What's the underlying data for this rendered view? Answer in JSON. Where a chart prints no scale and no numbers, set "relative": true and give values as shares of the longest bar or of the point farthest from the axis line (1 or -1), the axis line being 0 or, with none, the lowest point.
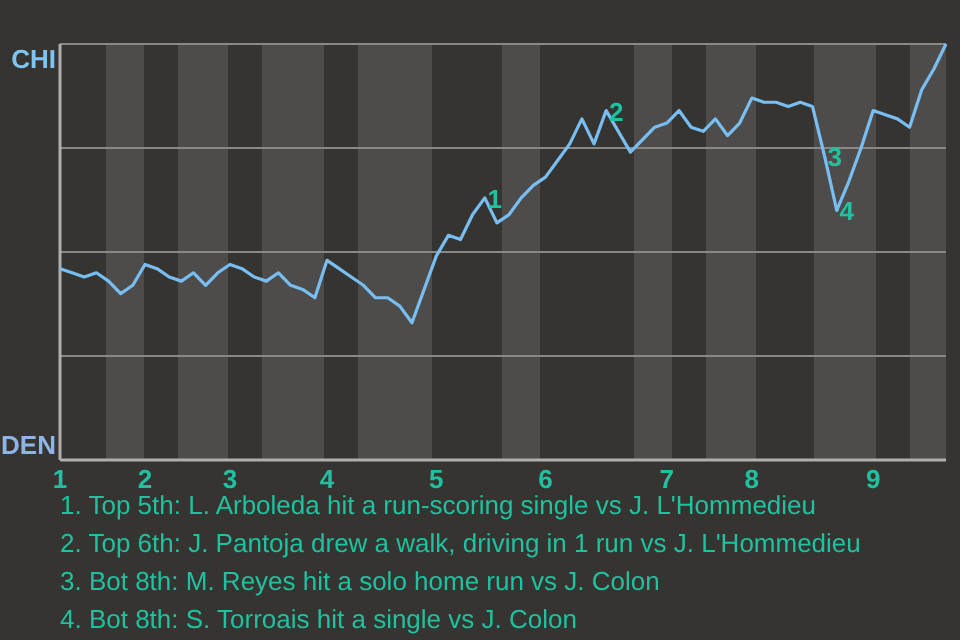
{
  "chart_data": {
    "type": "line",
    "relative": true,
    "categories": [
      "1",
      null,
      null,
      null,
      null,
      null,
      null,
      "2",
      null,
      null,
      null,
      null,
      null,
      null,
      "3",
      null,
      null,
      null,
      null,
      null,
      null,
      null,
      "4",
      null,
      null,
      null,
      null,
      null,
      null,
      null,
      null,
      "5",
      null,
      null,
      null,
      null,
      null,
      null,
      null,
      null,
      "6",
      null,
      null,
      null,
      null,
      null,
      null,
      null,
      null,
      null,
      "7",
      null,
      null,
      null,
      null,
      null,
      null,
      "8",
      null,
      null,
      null,
      null,
      null,
      null,
      null,
      null,
      null,
      "9",
      null,
      null,
      null,
      null,
      null,
      null
    ],
    "grid": "y",
    "marker": "none",
    "line_style": "solid",
    "series": [
      {
        "color": "#78bef2",
        "values": [
          0.46,
          0.45,
          0.44,
          0.45,
          0.43,
          0.4,
          0.42,
          0.47,
          0.46,
          0.44,
          0.43,
          0.45,
          0.42,
          0.45,
          0.47,
          0.46,
          0.44,
          0.43,
          0.45,
          0.42,
          0.41,
          0.39,
          0.48,
          0.46,
          0.44,
          0.42,
          0.39,
          0.39,
          0.37,
          0.33,
          0.41,
          0.49,
          0.54,
          0.53,
          0.59,
          0.63,
          0.57,
          0.59,
          0.63,
          0.66,
          0.68,
          0.72,
          0.76,
          0.82,
          0.76,
          0.84,
          0.79,
          0.74,
          0.77,
          0.8,
          0.81,
          0.84,
          0.8,
          0.79,
          0.82,
          0.78,
          0.81,
          0.87,
          0.86,
          0.86,
          0.85,
          0.86,
          0.85,
          0.73,
          0.6,
          0.67,
          0.75,
          0.84,
          0.83,
          0.82,
          0.8,
          0.89,
          0.94,
          1.0
        ]
      }
    ],
    "annotations": [
      "CHI",
      "DEN",
      {
        "text": "1",
        "y": 0.63
      },
      {
        "text": "2",
        "y": 0.84
      },
      {
        "text": "3",
        "y": 0.73
      },
      {
        "text": "4",
        "y": 0.6
      },
      "1. Top 5th: L. Arboleda hit a run-scoring single vs J. L'Hommedieu",
      "2. Top 6th: J. Pantoja drew a walk, driving in 1 run vs J. L'Hommedieu",
      "3. Bot 8th: M. Reyes hit a solo home run vs J. Colon",
      "4. Bot 8th: S. Torroais hit a single vs J. Colon"
    ]
  }
}
